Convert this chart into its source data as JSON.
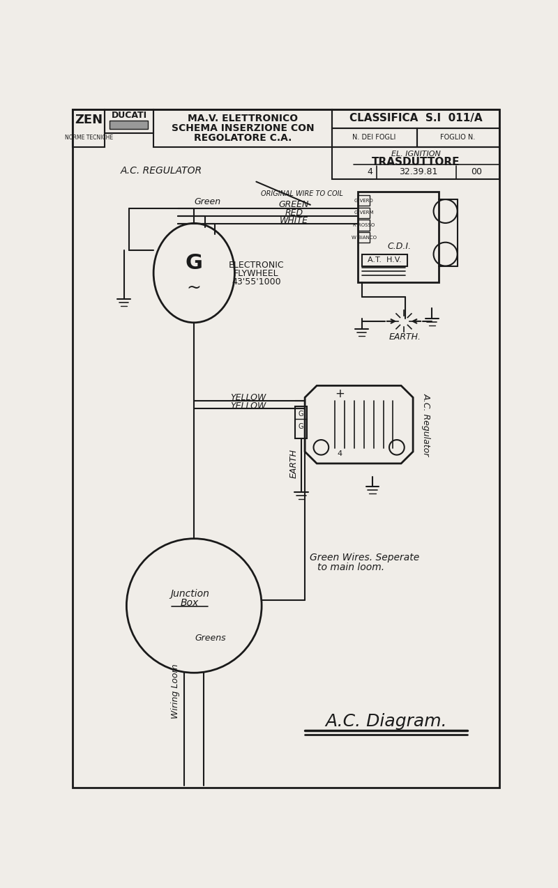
{
  "bg_color": "#f0ede8",
  "line_color": "#1a1a1a",
  "title_line1": "MA.V. ELETTRONICO",
  "title_line2": "SCHEMA INSERZIONE CON",
  "title_line3": "REGOLATORE C.A.",
  "classifica": "CLASSIFICA  S.I  011/A",
  "n_dei_fogli": "N. DEI FOGLI",
  "foglio_n": "FOGLIO N.",
  "el_ignition": "EL. IGNITION",
  "trasduttore": "TRASDUTTORE",
  "trasd_num_left": "4",
  "trasd_num_mid": "32.39.81",
  "trasd_num_right": "00",
  "ac_regulator_top": "A.C. REGULATOR",
  "flywheel_label1": "ELECTRONIC",
  "flywheel_label2": "FLYWHEEL",
  "flywheel_label3": "43'55'1000",
  "flywheel_symbol": "G",
  "wire_green_label": "Green",
  "wire_original": "ORIGINAL WIRE TO COIL",
  "wire_green2": "GREEN",
  "wire_red": "RED",
  "wire_white": "WHITE",
  "pin1": "G VERD",
  "pin2": "G VERM",
  "pin3": "R ROSSO",
  "pin4": "W BIANCO",
  "cdi_label": "C.D.I.",
  "at_hv": "A.T.  H.V.",
  "earth_label": "EARTH.",
  "yellow1": "YELLOW",
  "yellow2": "YELLOW",
  "earth2": "EARTH",
  "junction_line1": "Junction",
  "junction_line2": "Box",
  "greens": "Greens",
  "wiring_loom": "Wiring Loom",
  "green_note1": "Green Wires. Seperate",
  "green_note2": "to main loom.",
  "ac_diagram": "A.C. Diagram.",
  "ac_regulator_side": "A.C. Regulator",
  "zen_text": "ZEN",
  "norme": "NORME TECNICHE",
  "ducati": "DUCATI"
}
